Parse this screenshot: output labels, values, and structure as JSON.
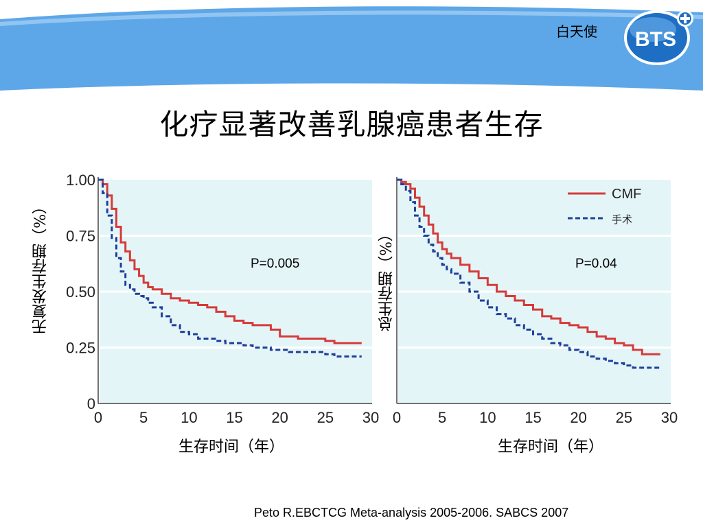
{
  "header": {
    "logo_label": "白天使",
    "logo_text": "BTS"
  },
  "title": "化疗显著改善乳腺癌患者生存",
  "colors": {
    "plot_bg": "#e4f5f7",
    "cmf": "#d63a3a",
    "surgery": "#1f3f9a",
    "banner": "#5da7e8"
  },
  "citation": "Peto R.EBCTCG Meta-analysis 2005-2006. SABCS 2007",
  "chart_data": [
    {
      "type": "line",
      "ylabel": "无复发生存期（%）",
      "xlabel": "生存时间（年）",
      "xlim": [
        0,
        30
      ],
      "ylim": [
        0,
        1
      ],
      "xticks": [
        "0",
        "5",
        "10",
        "15",
        "20",
        "25",
        "30"
      ],
      "yticks": [
        "0",
        "0.25",
        "0.50",
        "0.75",
        "1.00"
      ],
      "annotation": "P=0.005",
      "series": [
        {
          "name": "CMF",
          "style": "solid",
          "x": [
            0,
            0.5,
            1,
            1.5,
            2,
            2.5,
            3,
            3.5,
            4,
            4.5,
            5,
            5.5,
            6,
            7,
            8,
            9,
            10,
            11,
            12,
            13,
            14,
            15,
            16,
            17,
            18,
            19,
            20,
            21,
            22,
            23,
            24,
            25,
            26,
            27,
            28,
            29
          ],
          "y": [
            1.0,
            0.98,
            0.93,
            0.87,
            0.79,
            0.72,
            0.68,
            0.64,
            0.6,
            0.57,
            0.54,
            0.52,
            0.51,
            0.49,
            0.47,
            0.46,
            0.45,
            0.44,
            0.43,
            0.41,
            0.39,
            0.37,
            0.36,
            0.35,
            0.35,
            0.33,
            0.3,
            0.3,
            0.29,
            0.29,
            0.29,
            0.28,
            0.27,
            0.27,
            0.27,
            0.27
          ]
        },
        {
          "name": "",
          "style": "dashed",
          "x": [
            0,
            0.5,
            1,
            1.5,
            2,
            2.5,
            3,
            3.5,
            4,
            4.5,
            5,
            5.5,
            6,
            7,
            8,
            9,
            10,
            11,
            12,
            13,
            14,
            15,
            16,
            17,
            18,
            19,
            20,
            21,
            22,
            23,
            24,
            25,
            26,
            27,
            28,
            29
          ],
          "y": [
            1.0,
            0.94,
            0.84,
            0.74,
            0.65,
            0.59,
            0.53,
            0.51,
            0.49,
            0.48,
            0.47,
            0.45,
            0.43,
            0.39,
            0.35,
            0.32,
            0.31,
            0.29,
            0.29,
            0.28,
            0.27,
            0.27,
            0.26,
            0.25,
            0.25,
            0.24,
            0.24,
            0.23,
            0.23,
            0.23,
            0.23,
            0.22,
            0.21,
            0.21,
            0.21,
            0.21
          ]
        }
      ]
    },
    {
      "type": "line",
      "ylabel": "总生存期（%）",
      "xlabel": "生存时间（年）",
      "xlim": [
        0,
        30
      ],
      "ylim": [
        0,
        1
      ],
      "xticks": [
        "0",
        "5",
        "10",
        "15",
        "20",
        "25",
        "30"
      ],
      "yticks": [],
      "annotation": "P=0.04",
      "legend": {
        "position": "top-right",
        "entries": [
          {
            "label": "CMF",
            "style": "solid"
          },
          {
            "label": "手术",
            "style": "dashed"
          }
        ]
      },
      "series": [
        {
          "name": "CMF",
          "style": "solid",
          "x": [
            0,
            0.5,
            1,
            1.5,
            2,
            2.5,
            3,
            3.5,
            4,
            4.5,
            5,
            5.5,
            6,
            7,
            8,
            9,
            10,
            11,
            12,
            13,
            14,
            15,
            16,
            17,
            18,
            19,
            20,
            21,
            22,
            23,
            24,
            25,
            26,
            27,
            28,
            29
          ],
          "y": [
            1.0,
            0.99,
            0.98,
            0.96,
            0.92,
            0.88,
            0.84,
            0.8,
            0.76,
            0.72,
            0.69,
            0.67,
            0.65,
            0.62,
            0.59,
            0.56,
            0.53,
            0.5,
            0.48,
            0.46,
            0.44,
            0.42,
            0.39,
            0.38,
            0.36,
            0.35,
            0.34,
            0.32,
            0.3,
            0.29,
            0.27,
            0.26,
            0.24,
            0.22,
            0.22,
            0.22
          ]
        },
        {
          "name": "手术",
          "style": "dashed",
          "x": [
            0,
            0.5,
            1,
            1.5,
            2,
            2.5,
            3,
            3.5,
            4,
            4.5,
            5,
            5.5,
            6,
            7,
            8,
            9,
            10,
            11,
            12,
            13,
            14,
            15,
            16,
            17,
            18,
            19,
            20,
            21,
            22,
            23,
            24,
            25,
            26,
            27,
            28,
            29
          ],
          "y": [
            1.0,
            0.98,
            0.95,
            0.9,
            0.84,
            0.79,
            0.75,
            0.71,
            0.68,
            0.65,
            0.62,
            0.6,
            0.58,
            0.54,
            0.5,
            0.46,
            0.43,
            0.4,
            0.38,
            0.35,
            0.33,
            0.31,
            0.29,
            0.27,
            0.26,
            0.24,
            0.23,
            0.21,
            0.2,
            0.19,
            0.18,
            0.17,
            0.16,
            0.16,
            0.16,
            0.16
          ]
        }
      ]
    }
  ]
}
